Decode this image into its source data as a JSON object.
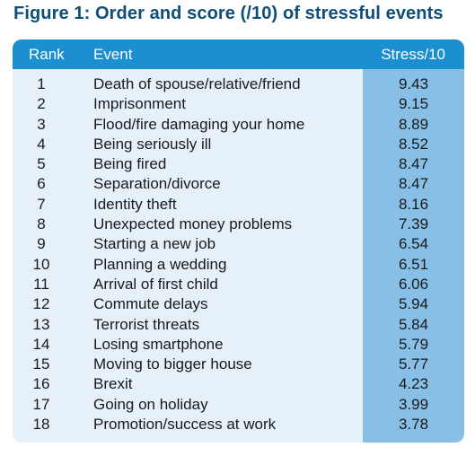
{
  "figure_title": "Figure 1: Order and score (/10) of stressful events",
  "table": {
    "headers": {
      "rank": "Rank",
      "event": "Event",
      "stress": "Stress/10"
    },
    "rows": [
      {
        "rank": "1",
        "event": "Death of spouse/relative/friend",
        "stress": "9.43"
      },
      {
        "rank": "2",
        "event": "Imprisonment",
        "stress": "9.15"
      },
      {
        "rank": "3",
        "event": "Flood/fire damaging your home",
        "stress": "8.89"
      },
      {
        "rank": "4",
        "event": "Being seriously ill",
        "stress": "8.52"
      },
      {
        "rank": "5",
        "event": "Being fired",
        "stress": "8.47"
      },
      {
        "rank": "6",
        "event": "Separation/divorce",
        "stress": "8.47"
      },
      {
        "rank": "7",
        "event": "Identity theft",
        "stress": "8.16"
      },
      {
        "rank": "8",
        "event": "Unexpected money problems",
        "stress": "7.39"
      },
      {
        "rank": "9",
        "event": "Starting a new job",
        "stress": "6.54"
      },
      {
        "rank": "10",
        "event": "Planning a wedding",
        "stress": "6.51"
      },
      {
        "rank": "11",
        "event": "Arrival of first child",
        "stress": "6.06"
      },
      {
        "rank": "12",
        "event": "Commute delays",
        "stress": "5.94"
      },
      {
        "rank": "13",
        "event": "Terrorist threats",
        "stress": "5.84"
      },
      {
        "rank": "14",
        "event": "Losing smartphone",
        "stress": "5.79"
      },
      {
        "rank": "15",
        "event": "Moving to bigger house",
        "stress": "5.77"
      },
      {
        "rank": "16",
        "event": "Brexit",
        "stress": "4.23"
      },
      {
        "rank": "17",
        "event": "Going on holiday",
        "stress": "3.99"
      },
      {
        "rank": "18",
        "event": "Promotion/success at work",
        "stress": "3.78"
      }
    ]
  },
  "colors": {
    "title": "#0e4f7a",
    "header_bg": "#1c8fd0",
    "panel_bg": "#e6f0f8",
    "stress_column_bg": "#87bfe6"
  }
}
